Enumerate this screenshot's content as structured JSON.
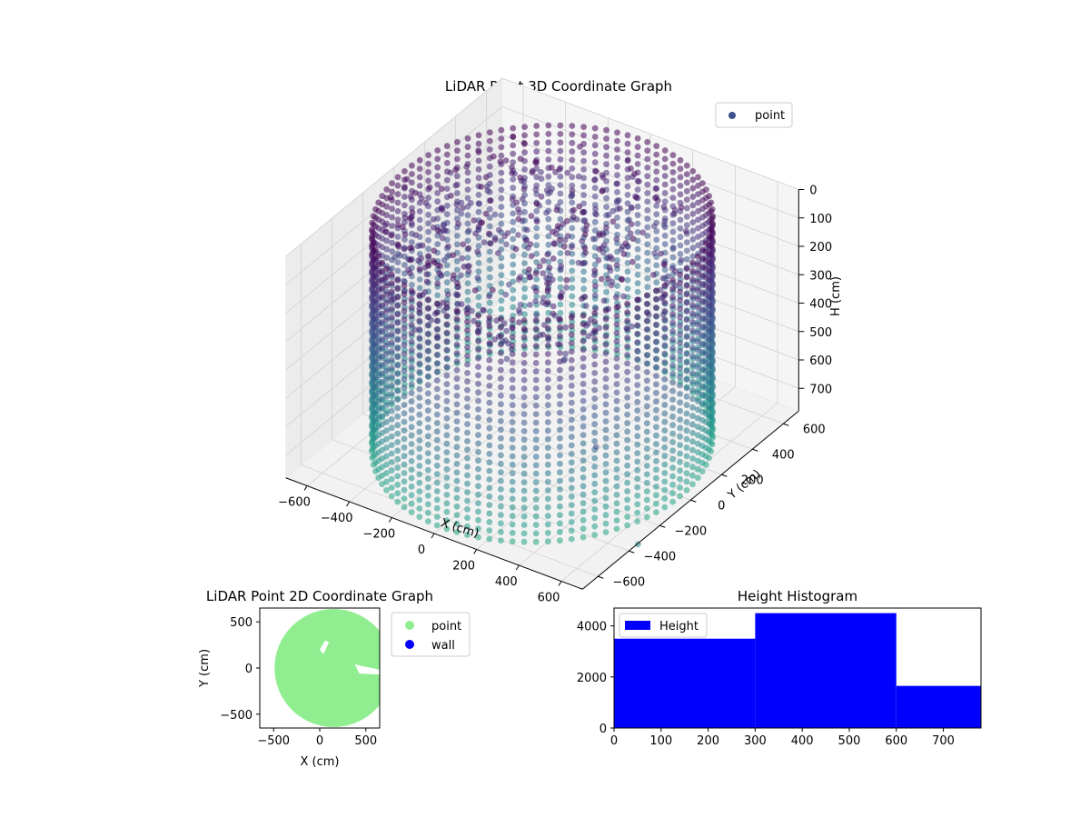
{
  "chart_data": [
    {
      "type": "scatter",
      "projection": "3d",
      "title": "LiDAR Point 3D Coordinate Graph",
      "xlabel": "X (cm)",
      "ylabel": "Y (cm)",
      "zlabel": "H (cm)",
      "xticks": [
        -600,
        -400,
        -200,
        0,
        200,
        400,
        600
      ],
      "yticks": [
        -600,
        -400,
        -200,
        0,
        200,
        400,
        600
      ],
      "zticks": [
        0,
        100,
        200,
        300,
        400,
        500,
        600,
        700
      ],
      "xlim": [
        -700,
        700
      ],
      "ylim": [
        -700,
        700
      ],
      "zlim": [
        0,
        780
      ],
      "z_axis_inverted": true,
      "grid": true,
      "legend": {
        "position": "top-right",
        "entries": [
          "point"
        ]
      },
      "series": [
        {
          "name": "point",
          "colormap": "viridis",
          "shape": "cylindrical wall of points with interior clutter",
          "wall_radius": 650,
          "height_range": [
            0,
            780
          ],
          "outliers": [
            [
              720,
              -640,
              300
            ],
            [
              860,
              -560,
              640
            ]
          ]
        }
      ],
      "colors": {
        "marker": "#3b528b",
        "legend_marker": "#3b528b"
      }
    },
    {
      "type": "scatter",
      "title": "LiDAR Point 2D Coordinate Graph",
      "xlabel": "X (cm)",
      "ylabel": "Y (cm)",
      "xticks": [
        -500,
        0,
        500
      ],
      "yticks": [
        -500,
        0,
        500
      ],
      "xlim": [
        -650,
        650
      ],
      "ylim": [
        -650,
        650
      ],
      "legend": {
        "position": "right-outside",
        "entries": [
          "point",
          "wall"
        ]
      },
      "series": [
        {
          "name": "point",
          "color": "#90ee90",
          "shape": "filled disk",
          "radius": 640,
          "center": [
            150,
            0
          ]
        },
        {
          "name": "wall",
          "color": "#0000ff"
        }
      ]
    },
    {
      "type": "bar",
      "title": "Height Histogram",
      "xticks": [
        0,
        100,
        200,
        300,
        400,
        500,
        600,
        700
      ],
      "yticks": [
        0,
        2000,
        4000
      ],
      "xlim": [
        0,
        780
      ],
      "ylim": [
        0,
        4700
      ],
      "bins": [
        {
          "from": 0,
          "to": 300,
          "value": 3500
        },
        {
          "from": 300,
          "to": 600,
          "value": 4500
        },
        {
          "from": 600,
          "to": 780,
          "value": 1650
        }
      ],
      "legend": {
        "position": "upper-left",
        "entries": [
          "Height"
        ]
      },
      "series": [
        {
          "name": "Height",
          "color": "#0000ff"
        }
      ]
    }
  ]
}
